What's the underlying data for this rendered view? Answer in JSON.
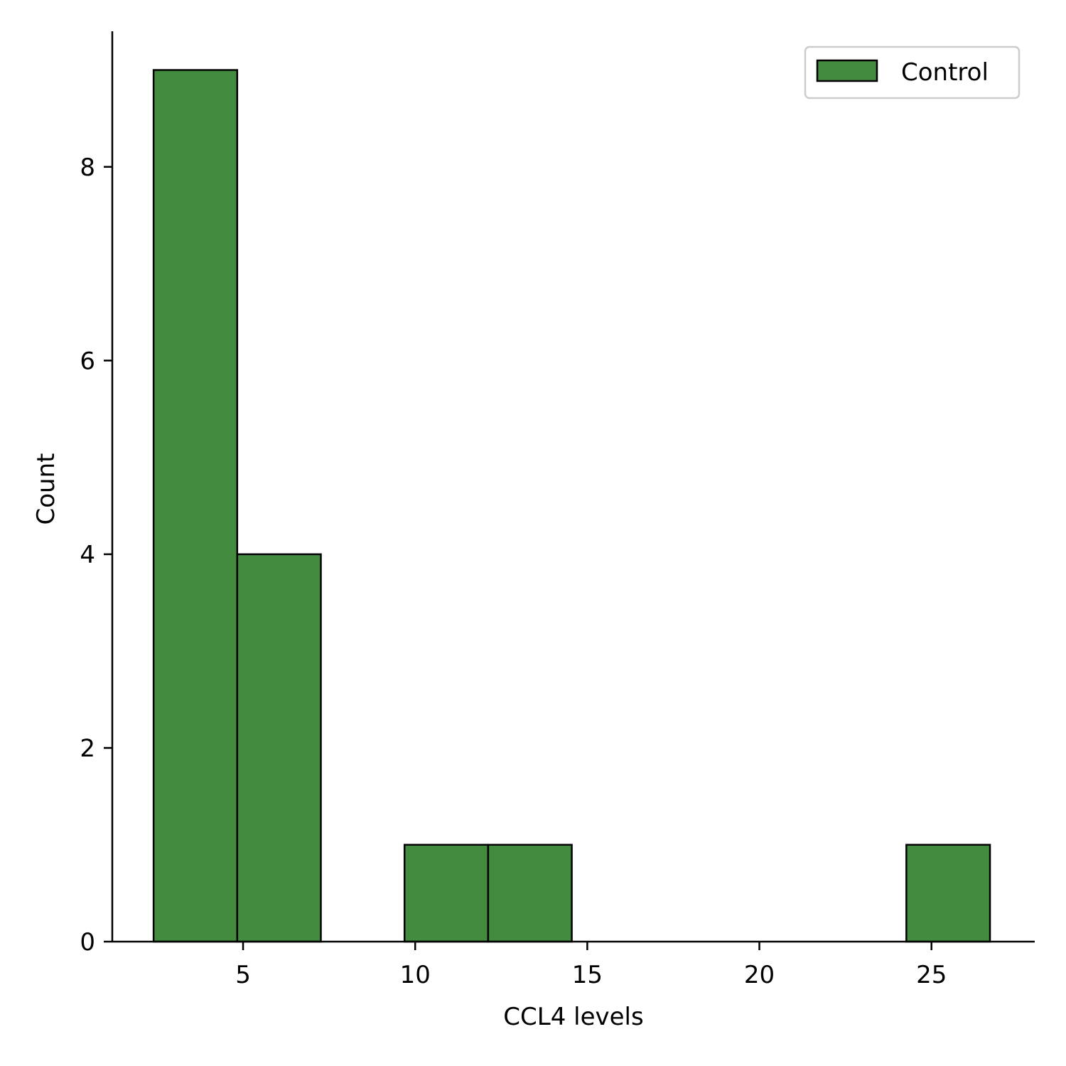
{
  "chart_data": {
    "type": "bar",
    "subtype": "histogram",
    "xlabel": "CCL4 levels",
    "ylabel": "Count",
    "xlim": [
      1.2,
      28.0
    ],
    "ylim": [
      0,
      9.4
    ],
    "xticks": [
      5,
      10,
      15,
      20,
      25
    ],
    "yticks": [
      0,
      2,
      4,
      6,
      8
    ],
    "bin_edges": [
      2.4,
      4.83,
      7.26,
      9.69,
      12.12,
      14.55,
      16.98,
      19.41,
      21.84,
      24.27,
      26.7
    ],
    "series": [
      {
        "name": "Control",
        "color": "#438b3f",
        "edge_color": "#000000",
        "values": [
          9,
          4,
          0,
          1,
          1,
          0,
          0,
          0,
          0,
          1
        ]
      }
    ],
    "legend": {
      "position": "top-right",
      "entries": [
        "Control"
      ]
    },
    "grid": false
  }
}
